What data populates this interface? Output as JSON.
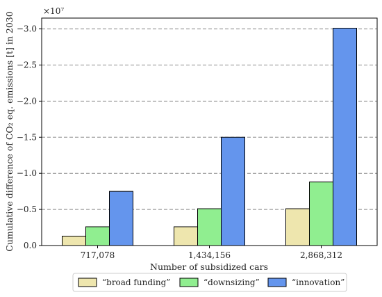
{
  "chart_data": {
    "type": "bar",
    "categories": [
      "717,078",
      "1,434,156",
      "2,868,312"
    ],
    "series": [
      {
        "name": "“broad funding”",
        "color": "#EEE6AE",
        "values": [
          -0.13,
          -0.26,
          -0.51
        ]
      },
      {
        "name": "“downsizing”",
        "color": "#90EE90",
        "values": [
          -0.26,
          -0.51,
          -0.88
        ]
      },
      {
        "name": "“innovation”",
        "color": "#6495ED",
        "values": [
          -0.75,
          -1.5,
          -3.01
        ]
      }
    ],
    "title": "",
    "xlabel": "Number of subsidized cars",
    "ylabel": "Cumulative difference of CO₂ eq. emissions [t] in 2030",
    "y_multiplier": "×10⁷",
    "y_ticks": [
      "0.0",
      "−0.5",
      "−1.0",
      "−1.5",
      "−2.0",
      "−2.5",
      "−3.0"
    ],
    "y_tick_values": [
      0,
      -0.5,
      -1.0,
      -1.5,
      -2.0,
      -2.5,
      -3.0
    ],
    "ylim": [
      0,
      -3.15
    ],
    "grid": "horizontal dashed",
    "legend_placement": "bottom-center"
  }
}
